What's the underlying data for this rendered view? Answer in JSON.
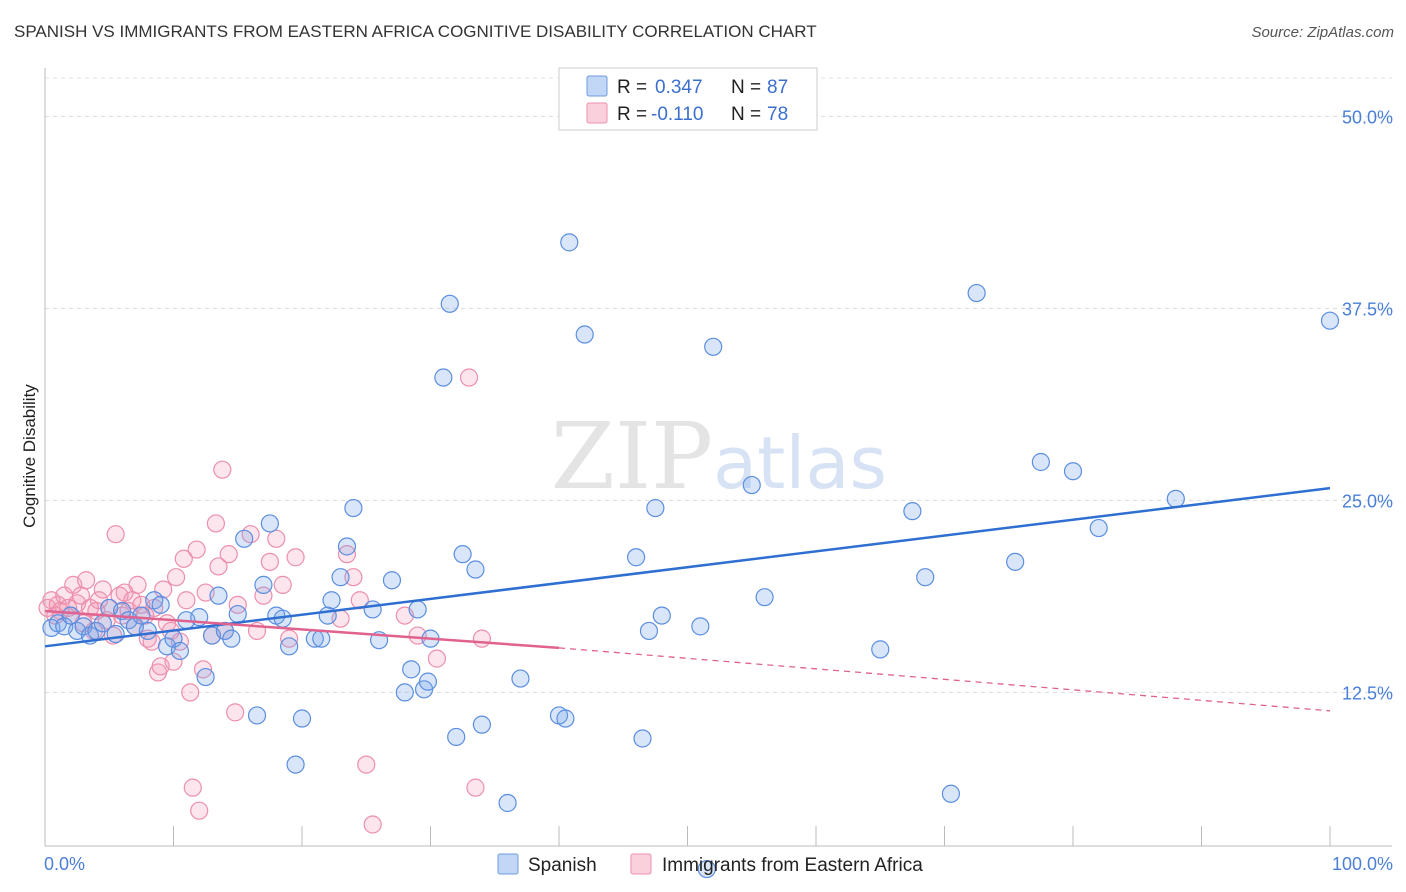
{
  "header": {
    "title": "SPANISH VS IMMIGRANTS FROM EASTERN AFRICA COGNITIVE DISABILITY CORRELATION CHART",
    "source": "Source: ZipAtlas.com"
  },
  "watermark": {
    "zip": "ZIP",
    "atlas": "atlas"
  },
  "colors": {
    "blue_fill": "rgba(120,165,235,0.28)",
    "blue_stroke": "#5b8ee0",
    "blue_line": "#2f6fd1",
    "pink_fill": "rgba(245,150,180,0.25)",
    "pink_stroke": "#ec8fae",
    "pink_line": "#e0628f"
  },
  "legend": {
    "items": [
      {
        "r_label": "R =",
        "r_value": "0.347",
        "n_label": "N =",
        "n_value": "87"
      },
      {
        "r_label": "R =",
        "r_value": "-0.110",
        "n_label": "N =",
        "n_value": "78"
      }
    ]
  },
  "bottom_legend": {
    "items": [
      "Spanish",
      "Immigrants from Eastern Africa"
    ]
  },
  "chart_data": {
    "type": "scatter",
    "ylabel": "Cognitive Disability",
    "xlim": [
      0,
      100
    ],
    "ylim": [
      2.5,
      52.5
    ],
    "x_tick_labels": [
      "0.0%",
      "100.0%"
    ],
    "y_ticks": [
      12.5,
      25.0,
      37.5,
      50.0
    ],
    "y_tick_labels": [
      "12.5%",
      "25.0%",
      "37.5%",
      "50.0%"
    ],
    "grid": "horizontal dashed",
    "series": [
      {
        "name": "Spanish",
        "trend": {
          "x0": 0,
          "y0": 15.5,
          "x1": 100,
          "y1": 25.8
        },
        "points": [
          [
            0.5,
            16.7
          ],
          [
            1.0,
            17.0
          ],
          [
            1.5,
            16.8
          ],
          [
            2.0,
            17.5
          ],
          [
            2.5,
            16.5
          ],
          [
            3.0,
            16.8
          ],
          [
            3.5,
            16.2
          ],
          [
            4.0,
            16.5
          ],
          [
            4.5,
            17.0
          ],
          [
            5.0,
            18.0
          ],
          [
            5.5,
            16.3
          ],
          [
            6.0,
            17.8
          ],
          [
            6.5,
            17.2
          ],
          [
            7.0,
            16.8
          ],
          [
            7.5,
            17.5
          ],
          [
            8.0,
            16.5
          ],
          [
            8.5,
            18.5
          ],
          [
            9.0,
            18.2
          ],
          [
            9.5,
            15.5
          ],
          [
            10.0,
            16.0
          ],
          [
            10.5,
            15.2
          ],
          [
            11.0,
            17.2
          ],
          [
            12.0,
            17.4
          ],
          [
            12.5,
            13.5
          ],
          [
            13.0,
            16.2
          ],
          [
            13.5,
            18.8
          ],
          [
            14.0,
            16.5
          ],
          [
            14.5,
            16.0
          ],
          [
            15.0,
            17.6
          ],
          [
            15.5,
            22.5
          ],
          [
            16.5,
            11.0
          ],
          [
            17.0,
            19.5
          ],
          [
            17.5,
            23.5
          ],
          [
            18.0,
            17.5
          ],
          [
            18.5,
            17.3
          ],
          [
            19.0,
            15.5
          ],
          [
            19.5,
            7.8
          ],
          [
            20.0,
            10.8
          ],
          [
            21.0,
            16.0
          ],
          [
            21.5,
            16.0
          ],
          [
            22.0,
            17.5
          ],
          [
            22.3,
            18.5
          ],
          [
            23.0,
            20.0
          ],
          [
            23.5,
            22.0
          ],
          [
            24.0,
            24.5
          ],
          [
            25.5,
            17.9
          ],
          [
            26.0,
            15.9
          ],
          [
            27.0,
            19.8
          ],
          [
            28.0,
            12.5
          ],
          [
            28.5,
            14.0
          ],
          [
            29.0,
            17.9
          ],
          [
            29.5,
            12.7
          ],
          [
            29.8,
            13.2
          ],
          [
            30.0,
            16.0
          ],
          [
            31.0,
            33.0
          ],
          [
            32.0,
            9.6
          ],
          [
            31.5,
            37.8
          ],
          [
            32.5,
            21.5
          ],
          [
            33.5,
            20.5
          ],
          [
            34.0,
            10.4
          ],
          [
            36.0,
            5.3
          ],
          [
            37.0,
            13.4
          ],
          [
            40.0,
            11.0
          ],
          [
            40.5,
            10.8
          ],
          [
            40.8,
            41.8
          ],
          [
            42.0,
            35.8
          ],
          [
            46.0,
            21.3
          ],
          [
            46.5,
            9.5
          ],
          [
            47.0,
            16.5
          ],
          [
            47.5,
            24.5
          ],
          [
            51.0,
            16.8
          ],
          [
            51.5,
            1.0
          ],
          [
            52.0,
            35.0
          ],
          [
            55.0,
            26.0
          ],
          [
            56.0,
            18.7
          ],
          [
            65.0,
            15.3
          ],
          [
            67.5,
            24.3
          ],
          [
            68.5,
            20.0
          ],
          [
            70.5,
            5.9
          ],
          [
            72.5,
            38.5
          ],
          [
            75.5,
            21.0
          ],
          [
            77.5,
            27.5
          ],
          [
            80.0,
            26.9
          ],
          [
            82.0,
            23.2
          ],
          [
            88.0,
            25.1
          ],
          [
            100.0,
            36.7
          ],
          [
            48.0,
            17.5
          ]
        ]
      },
      {
        "name": "Immigrants from Eastern Africa",
        "trend": {
          "x0": 0,
          "y0": 17.8,
          "x1": 40,
          "y1": 15.4,
          "x2": 100,
          "y2": 11.3
        },
        "points": [
          [
            0.2,
            18.0
          ],
          [
            0.5,
            18.5
          ],
          [
            0.8,
            17.5
          ],
          [
            1.0,
            18.2
          ],
          [
            1.2,
            17.8
          ],
          [
            1.5,
            18.8
          ],
          [
            1.8,
            18.0
          ],
          [
            2.0,
            17.5
          ],
          [
            2.2,
            19.5
          ],
          [
            2.5,
            18.3
          ],
          [
            2.8,
            18.8
          ],
          [
            3.0,
            17.0
          ],
          [
            3.2,
            19.8
          ],
          [
            3.5,
            18.0
          ],
          [
            3.8,
            16.5
          ],
          [
            4.0,
            17.8
          ],
          [
            4.2,
            18.5
          ],
          [
            4.5,
            19.2
          ],
          [
            4.8,
            17.2
          ],
          [
            5.0,
            18.0
          ],
          [
            5.3,
            16.2
          ],
          [
            5.5,
            22.8
          ],
          [
            5.8,
            18.8
          ],
          [
            6.0,
            17.5
          ],
          [
            6.2,
            19.0
          ],
          [
            6.5,
            17.8
          ],
          [
            6.8,
            18.5
          ],
          [
            7.0,
            16.8
          ],
          [
            7.2,
            19.5
          ],
          [
            7.5,
            18.2
          ],
          [
            7.8,
            17.5
          ],
          [
            8.0,
            16.0
          ],
          [
            8.3,
            15.8
          ],
          [
            8.5,
            18.0
          ],
          [
            8.8,
            13.8
          ],
          [
            9.0,
            14.2
          ],
          [
            9.2,
            19.2
          ],
          [
            9.5,
            17.0
          ],
          [
            9.8,
            16.5
          ],
          [
            10.0,
            14.5
          ],
          [
            10.2,
            20.0
          ],
          [
            10.5,
            15.8
          ],
          [
            10.8,
            21.2
          ],
          [
            11.0,
            18.5
          ],
          [
            11.3,
            12.5
          ],
          [
            11.5,
            6.3
          ],
          [
            11.8,
            21.8
          ],
          [
            12.0,
            4.8
          ],
          [
            12.3,
            14.0
          ],
          [
            12.5,
            19.0
          ],
          [
            13.0,
            16.2
          ],
          [
            13.3,
            23.5
          ],
          [
            13.5,
            20.7
          ],
          [
            13.8,
            27.0
          ],
          [
            14.0,
            16.5
          ],
          [
            14.3,
            21.5
          ],
          [
            14.8,
            11.2
          ],
          [
            15.0,
            18.2
          ],
          [
            16.0,
            22.8
          ],
          [
            16.5,
            16.5
          ],
          [
            17.0,
            18.8
          ],
          [
            17.5,
            21.0
          ],
          [
            18.0,
            22.5
          ],
          [
            18.5,
            19.5
          ],
          [
            19.0,
            16.0
          ],
          [
            19.5,
            21.3
          ],
          [
            23.0,
            17.3
          ],
          [
            23.5,
            21.5
          ],
          [
            24.0,
            20.0
          ],
          [
            24.5,
            18.5
          ],
          [
            25.0,
            7.8
          ],
          [
            25.5,
            3.9
          ],
          [
            28.0,
            17.5
          ],
          [
            29.0,
            16.2
          ],
          [
            33.0,
            33.0
          ],
          [
            33.5,
            6.3
          ],
          [
            34.0,
            16.0
          ],
          [
            30.5,
            14.7
          ]
        ]
      }
    ]
  }
}
